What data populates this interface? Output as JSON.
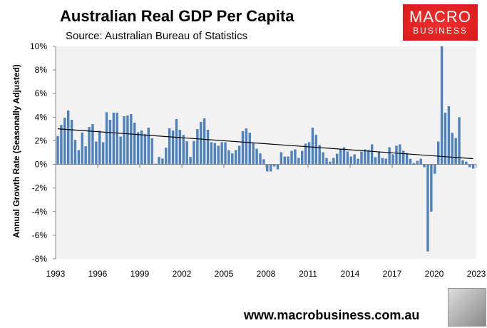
{
  "header": {
    "title": "Australian Real GDP Per Capita",
    "source": "Source: Australian Bureau of Statistics"
  },
  "logo": {
    "line1": "MACRO",
    "line2": "BUSINESS",
    "color": "#e02020"
  },
  "footer": {
    "url": "www.macrobusiness.com.au"
  },
  "chart_data": {
    "type": "bar",
    "title": "Australian Real GDP Per Capita",
    "ylabel": "Annual Growth Rate (Seasonally Adjusted)",
    "xlabel": "",
    "ylim": [
      -8,
      10
    ],
    "yticks": [
      "10%",
      "8%",
      "6%",
      "4%",
      "2%",
      "0%",
      "-2%",
      "-4%",
      "-6%",
      "-8%"
    ],
    "ytick_values": [
      10,
      8,
      6,
      4,
      2,
      0,
      -2,
      -4,
      -6,
      -8
    ],
    "xticks": [
      "1993",
      "1996",
      "1999",
      "2002",
      "2005",
      "2008",
      "2011",
      "2014",
      "2017",
      "2020",
      "2023"
    ],
    "xlim": [
      1993,
      2023
    ],
    "bar_color": "#4f81bd",
    "trendline": "linear",
    "grid": false,
    "values": [
      2.4,
      3.35,
      3.96,
      4.57,
      3.78,
      2.08,
      1.21,
      2.69,
      1.54,
      3.17,
      3.41,
      1.94,
      2.85,
      1.88,
      4.42,
      3.78,
      4.38,
      4.38,
      2.36,
      4.08,
      4.14,
      4.26,
      3.54,
      2.73,
      2.87,
      2.57,
      3.11,
      2.22,
      0.06,
      0.63,
      0.5,
      1.41,
      3.05,
      2.87,
      3.84,
      2.93,
      2.5,
      1.96,
      0.63,
      1.98,
      2.99,
      3.6,
      3.9,
      2.93,
      1.88,
      1.82,
      1.58,
      1.88,
      1.88,
      1.21,
      0.93,
      1.21,
      1.58,
      2.81,
      3.05,
      2.69,
      1.82,
      1.33,
      0.93,
      0.44,
      -0.6,
      -0.6,
      -0.18,
      -0.42,
      1.03,
      0.67,
      0.67,
      1.15,
      1.27,
      0.55,
      1.15,
      1.76,
      1.88,
      3.11,
      2.5,
      1.64,
      1.03,
      0.55,
      0.24,
      0.55,
      0.91,
      1.27,
      1.45,
      1.09,
      0.67,
      0.85,
      0.48,
      1.09,
      1.27,
      1.21,
      1.7,
      0.61,
      1.09,
      0.55,
      0.48,
      1.45,
      0.85,
      1.58,
      1.7,
      1.15,
      0.97,
      0.48,
      0.12,
      0.3,
      0.48,
      -0.24,
      -7.37,
      -4.0,
      -0.79,
      1.94,
      10.1,
      4.38,
      4.93,
      2.67,
      2.24,
      4.0,
      0.36,
      0.24,
      -0.24,
      -0.36
    ]
  }
}
